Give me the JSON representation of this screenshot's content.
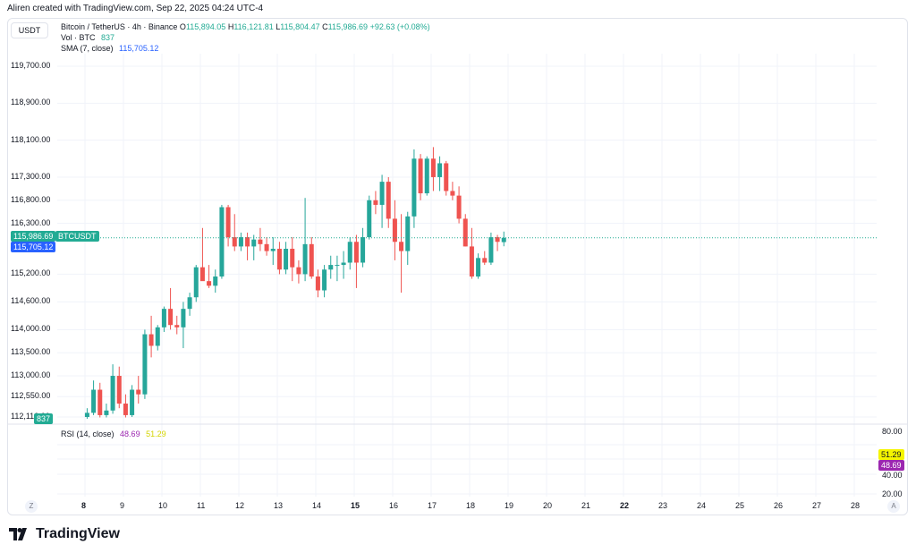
{
  "header": {
    "created_text": "Aliren created with TradingView.com, Sep 22, 2025 04:24 UTC-4"
  },
  "currency_button": "USDT",
  "legend": {
    "symbol": "Bitcoin / TetherUS · 4h · Binance",
    "o_label": "O",
    "o_value": "115,894.05",
    "h_label": "H",
    "h_value": "116,121.81",
    "l_label": "L",
    "l_value": "115,804.47",
    "c_label": "C",
    "c_value": "115,986.69",
    "change": "+92.63 (+0.08%)",
    "vol_label": "Vol · BTC",
    "vol_value": "837",
    "sma_label": "SMA (7, close)",
    "sma_value": "115,705.12"
  },
  "rsi_legend": {
    "label": "RSI (14, close)",
    "value1": "48.69",
    "value2": "51.29"
  },
  "price_tags": {
    "last_price": "115,986.69",
    "symbol_tag": "BTCUSDT",
    "sma_price": "115,705.12",
    "volume": "837"
  },
  "rsi_tags": {
    "yellow": "51.29",
    "purple": "48.69"
  },
  "rsi_axis": [
    "80.00",
    "40.00",
    "20.00"
  ],
  "corner_buttons": {
    "left": "Z",
    "right": "A"
  },
  "brand": {
    "name": "TradingView"
  },
  "colors": {
    "up": "#26a69a",
    "down": "#ef5350",
    "sma": "#2962ff",
    "last": "#22ab94",
    "rsi_purple": "#9c27b0",
    "rsi_yellow": "#f5f500"
  },
  "chart_data": {
    "type": "candlestick",
    "timeframe": "4h",
    "price_axis_labels": [
      "119,700.00",
      "118,900.00",
      "118,100.00",
      "117,300.00",
      "116,800.00",
      "116,300.00",
      "115,200.00",
      "114,600.00",
      "114,000.00",
      "113,500.00",
      "113,000.00",
      "112,550.00",
      "112,110.00"
    ],
    "x_axis_labels": [
      "8",
      "9",
      "10",
      "11",
      "12",
      "13",
      "14",
      "15",
      "16",
      "17",
      "18",
      "19",
      "20",
      "21",
      "22",
      "23",
      "24",
      "25",
      "26",
      "27",
      "28"
    ],
    "candles": [
      {
        "o": 112110,
        "h": 112300,
        "l": 112050,
        "c": 112200
      },
      {
        "o": 112200,
        "h": 112900,
        "l": 112150,
        "c": 112700
      },
      {
        "o": 112700,
        "h": 112850,
        "l": 112100,
        "c": 112150
      },
      {
        "o": 112150,
        "h": 112400,
        "l": 112100,
        "c": 112250
      },
      {
        "o": 112250,
        "h": 113250,
        "l": 112180,
        "c": 113000
      },
      {
        "o": 113000,
        "h": 113200,
        "l": 112300,
        "c": 112400
      },
      {
        "o": 112400,
        "h": 112600,
        "l": 112100,
        "c": 112150
      },
      {
        "o": 112150,
        "h": 112800,
        "l": 112110,
        "c": 112700
      },
      {
        "o": 112700,
        "h": 113000,
        "l": 112400,
        "c": 112600
      },
      {
        "o": 112600,
        "h": 114000,
        "l": 112500,
        "c": 113900
      },
      {
        "o": 113900,
        "h": 114300,
        "l": 113400,
        "c": 113650
      },
      {
        "o": 113650,
        "h": 114100,
        "l": 113550,
        "c": 114050
      },
      {
        "o": 114050,
        "h": 114500,
        "l": 113950,
        "c": 114450
      },
      {
        "o": 114450,
        "h": 114900,
        "l": 114000,
        "c": 114100
      },
      {
        "o": 114100,
        "h": 114300,
        "l": 113900,
        "c": 114050
      },
      {
        "o": 114050,
        "h": 114600,
        "l": 113600,
        "c": 114450
      },
      {
        "o": 114450,
        "h": 114800,
        "l": 114300,
        "c": 114700
      },
      {
        "o": 114700,
        "h": 115400,
        "l": 114600,
        "c": 115350
      },
      {
        "o": 115350,
        "h": 116200,
        "l": 115100,
        "c": 115050
      },
      {
        "o": 115050,
        "h": 115400,
        "l": 114900,
        "c": 114950
      },
      {
        "o": 114950,
        "h": 115300,
        "l": 114800,
        "c": 115150
      },
      {
        "o": 115150,
        "h": 116700,
        "l": 115100,
        "c": 116650
      },
      {
        "o": 116650,
        "h": 116700,
        "l": 115800,
        "c": 116000
      },
      {
        "o": 116000,
        "h": 116500,
        "l": 115700,
        "c": 115800
      },
      {
        "o": 115800,
        "h": 116100,
        "l": 115700,
        "c": 116000
      },
      {
        "o": 116000,
        "h": 116100,
        "l": 115500,
        "c": 115800
      },
      {
        "o": 115800,
        "h": 116050,
        "l": 115500,
        "c": 115950
      },
      {
        "o": 115950,
        "h": 116200,
        "l": 115700,
        "c": 115850
      },
      {
        "o": 115850,
        "h": 116000,
        "l": 115600,
        "c": 115700
      },
      {
        "o": 115700,
        "h": 116000,
        "l": 115400,
        "c": 115750
      },
      {
        "o": 115750,
        "h": 115900,
        "l": 115200,
        "c": 115300
      },
      {
        "o": 115300,
        "h": 115900,
        "l": 115200,
        "c": 115750
      },
      {
        "o": 115750,
        "h": 116000,
        "l": 115050,
        "c": 115350
      },
      {
        "o": 115350,
        "h": 115500,
        "l": 115000,
        "c": 115200
      },
      {
        "o": 115200,
        "h": 116850,
        "l": 115050,
        "c": 115850
      },
      {
        "o": 115850,
        "h": 116000,
        "l": 115100,
        "c": 115150
      },
      {
        "o": 115150,
        "h": 115300,
        "l": 114700,
        "c": 114850
      },
      {
        "o": 114850,
        "h": 115400,
        "l": 114700,
        "c": 115300
      },
      {
        "o": 115300,
        "h": 115600,
        "l": 115100,
        "c": 115400
      },
      {
        "o": 115400,
        "h": 115600,
        "l": 115050,
        "c": 115400
      },
      {
        "o": 115400,
        "h": 115700,
        "l": 115100,
        "c": 115450
      },
      {
        "o": 115450,
        "h": 116000,
        "l": 115300,
        "c": 115900
      },
      {
        "o": 115900,
        "h": 116050,
        "l": 114900,
        "c": 115450
      },
      {
        "o": 115450,
        "h": 116200,
        "l": 115350,
        "c": 116000
      },
      {
        "o": 116000,
        "h": 116900,
        "l": 115950,
        "c": 116800
      },
      {
        "o": 116800,
        "h": 117000,
        "l": 116500,
        "c": 116700
      },
      {
        "o": 116700,
        "h": 117350,
        "l": 116200,
        "c": 117200
      },
      {
        "o": 117200,
        "h": 117300,
        "l": 116200,
        "c": 116400
      },
      {
        "o": 116400,
        "h": 116800,
        "l": 115500,
        "c": 115900
      },
      {
        "o": 115900,
        "h": 116500,
        "l": 114800,
        "c": 115700
      },
      {
        "o": 115700,
        "h": 116550,
        "l": 115400,
        "c": 116450
      },
      {
        "o": 116450,
        "h": 117900,
        "l": 116200,
        "c": 117700
      },
      {
        "o": 117700,
        "h": 117800,
        "l": 116800,
        "c": 116950
      },
      {
        "o": 116950,
        "h": 117750,
        "l": 116900,
        "c": 117700
      },
      {
        "o": 117700,
        "h": 117950,
        "l": 117000,
        "c": 117300
      },
      {
        "o": 117300,
        "h": 117750,
        "l": 117000,
        "c": 117600
      },
      {
        "o": 117600,
        "h": 117650,
        "l": 116900,
        "c": 117000
      },
      {
        "o": 117000,
        "h": 117200,
        "l": 116800,
        "c": 116900
      },
      {
        "o": 116900,
        "h": 117100,
        "l": 116300,
        "c": 116400
      },
      {
        "o": 116400,
        "h": 116500,
        "l": 115800,
        "c": 115800
      },
      {
        "o": 115800,
        "h": 116200,
        "l": 115100,
        "c": 115150
      },
      {
        "o": 115150,
        "h": 115650,
        "l": 115100,
        "c": 115550
      },
      {
        "o": 115550,
        "h": 115700,
        "l": 115400,
        "c": 115450
      },
      {
        "o": 115450,
        "h": 116100,
        "l": 115400,
        "c": 116000
      },
      {
        "o": 116000,
        "h": 116050,
        "l": 115700,
        "c": 115900
      },
      {
        "o": 115894,
        "h": 116122,
        "l": 115804,
        "c": 115987
      }
    ],
    "last_price": 115986.69,
    "sma": {
      "period": 7,
      "value": 115705.12
    },
    "volume_last": 837,
    "rsi": {
      "period": 14,
      "values": [
        48.69,
        51.29
      ],
      "levels": [
        80,
        40,
        20
      ]
    },
    "grid": true
  }
}
